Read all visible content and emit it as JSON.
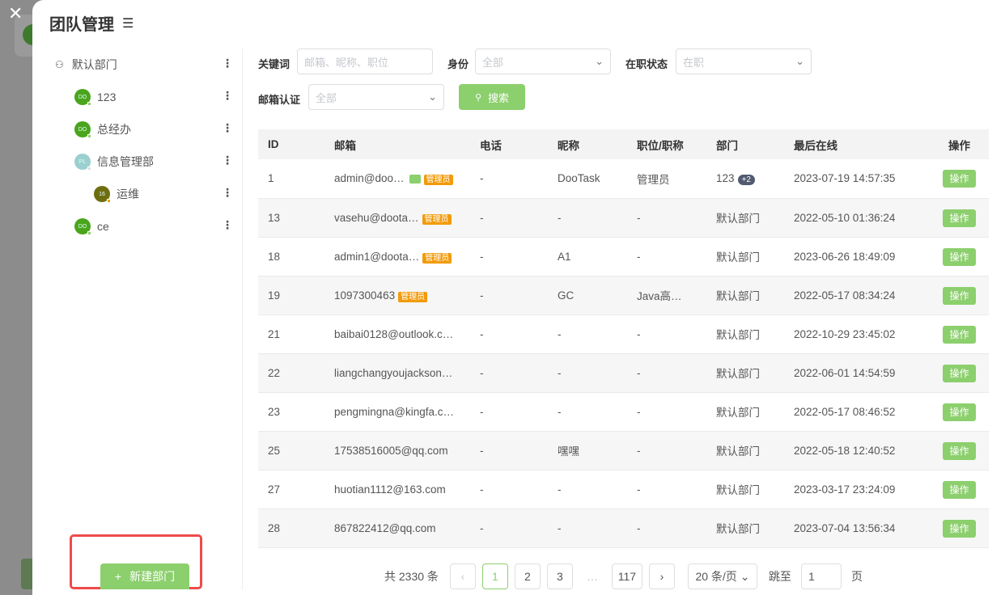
{
  "title": "团队管理",
  "sidebar": {
    "departments": [
      {
        "name": "默认部门",
        "avatar": ""
      },
      {
        "name": "123",
        "avatar": "DO"
      },
      {
        "name": "总经办",
        "avatar": "DO"
      },
      {
        "name": "信息管理部",
        "avatar": "PL"
      },
      {
        "name": "运维",
        "avatar": "16"
      },
      {
        "name": "ce",
        "avatar": "DO"
      }
    ],
    "new_button": "新建部门"
  },
  "filters": {
    "keyword_label": "关键词",
    "keyword_placeholder": "邮箱、昵称、职位",
    "identity_label": "身份",
    "identity_value": "全部",
    "status_label": "在职状态",
    "status_value": "在职",
    "email_label": "邮箱认证",
    "email_value": "全部",
    "search": "搜索"
  },
  "table": {
    "headers": [
      "ID",
      "邮箱",
      "电话",
      "昵称",
      "职位/职称",
      "部门",
      "最后在线",
      "操作"
    ],
    "admin_tag": "管理员",
    "action": "操作",
    "rows": [
      [
        "1",
        "admin@doo…",
        "-",
        "DooTask",
        "管理员",
        "123",
        "2023-07-19 14:57:35",
        "+2"
      ],
      [
        "13",
        "vasehu@doota…",
        "-",
        "-",
        "-",
        "默认部门",
        "2022-05-10 01:36:24"
      ],
      [
        "18",
        "admin1@doota…",
        "-",
        "A1",
        "-",
        "默认部门",
        "2023-06-26 18:49:09"
      ],
      [
        "19",
        "1097300463",
        "-",
        "GC",
        "Java高…",
        "默认部门",
        "2022-05-17 08:34:24"
      ],
      [
        "21",
        "baibai0128@outlook.c…",
        "-",
        "-",
        "-",
        "默认部门",
        "2022-10-29 23:45:02"
      ],
      [
        "22",
        "liangchangyoujackson…",
        "-",
        "-",
        "-",
        "默认部门",
        "2022-06-01 14:54:59"
      ],
      [
        "23",
        "pengmingna@kingfa.c…",
        "-",
        "-",
        "-",
        "默认部门",
        "2022-05-17 08:46:52"
      ],
      [
        "25",
        "17538516005@qq.com",
        "-",
        "嘿嘿",
        "-",
        "默认部门",
        "2022-05-18 12:40:52"
      ],
      [
        "27",
        "huotian1112@163.com",
        "-",
        "-",
        "-",
        "默认部门",
        "2023-03-17 23:24:09"
      ],
      [
        "28",
        "867822412@qq.com",
        "-",
        "-",
        "-",
        "默认部门",
        "2023-07-04 13:56:34"
      ]
    ]
  },
  "pagination": {
    "total": "共 2330 条",
    "pages": [
      "1",
      "2",
      "3",
      "…",
      "117"
    ],
    "page_size": "20 条/页",
    "jump_label": "跳至",
    "jump_value": "1",
    "page_suffix": "页"
  }
}
